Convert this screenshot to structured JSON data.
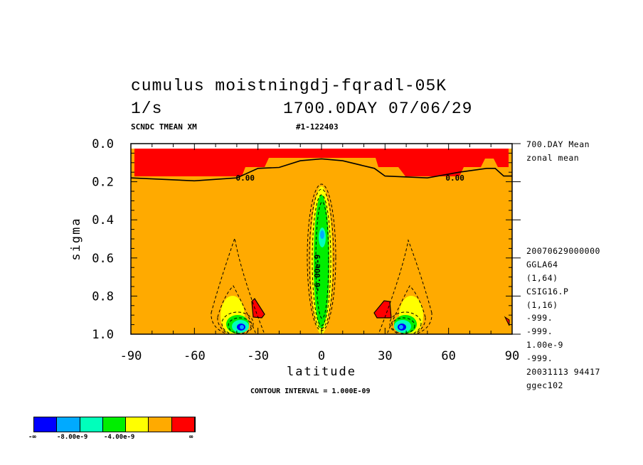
{
  "header": {
    "title_line1": "cumulus moistningdj-fqradl-05K",
    "units": "1/s",
    "time_label": "1700.0DAY 07/06/29",
    "subtitle_left": "SCNDC TMEAN XM",
    "subtitle_right": "#1-122403",
    "contour_interval": "CONTOUR INTERVAL = 1.000E-09"
  },
  "side_info": [
    "700.DAY Mean",
    "zonal mean",
    "20070629000000",
    "GGLA64",
    "(1,64)",
    "CSIG16.P",
    "(1,16)",
    "-999.",
    "-999.",
    "1.00e-9",
    "-999.",
    "20031113  94417",
    "ggec102"
  ],
  "legend": {
    "labels": [
      "-∞",
      "-8.00e-9",
      "-4.00e-9",
      "∞"
    ],
    "colors": [
      "#0000ff",
      "#00aaff",
      "#00ffbb",
      "#00ee00",
      "#ffff00",
      "#ffaa00",
      "#ff0000"
    ]
  },
  "chart_data": {
    "type": "heatmap",
    "subtype": "filled contour",
    "title": "cumulus moistningdj-fqradl-05K",
    "xlabel": "latitude",
    "ylabel": "sigma",
    "xlim": [
      -90,
      90
    ],
    "ylim": [
      1.0,
      0.0
    ],
    "x_ticks": [
      -90,
      -60,
      -30,
      0,
      30,
      60,
      90
    ],
    "x_tick_labels": [
      "-90",
      "-60",
      "-30",
      "0",
      "30",
      "60",
      "90"
    ],
    "y_ticks": [
      0.0,
      0.2,
      0.4,
      0.6,
      0.8,
      1.0
    ],
    "y_tick_labels": [
      "0.0",
      "0.2",
      "0.4",
      "0.6",
      "0.8",
      "1.0"
    ],
    "contour_interval": 1e-09,
    "contour_labels": [
      {
        "text": "0.00",
        "lat": -36,
        "sigma": 0.18
      },
      {
        "text": "0.00",
        "lat": 63,
        "sigma": 0.18
      },
      {
        "text": "-6.00e-9",
        "lat": -2,
        "sigma": 0.68
      }
    ],
    "zero_line": [
      [
        -90,
        0.18
      ],
      [
        -60,
        0.195
      ],
      [
        -40,
        0.18
      ],
      [
        -30,
        0.13
      ],
      [
        -20,
        0.125
      ],
      [
        -10,
        0.09
      ],
      [
        0,
        0.08
      ],
      [
        10,
        0.09
      ],
      [
        25,
        0.13
      ],
      [
        30,
        0.17
      ],
      [
        50,
        0.18
      ],
      [
        65,
        0.15
      ],
      [
        78,
        0.13
      ],
      [
        82,
        0.13
      ],
      [
        86,
        0.17
      ],
      [
        90,
        0.17
      ]
    ],
    "features": [
      {
        "name": "upper positive layer",
        "level": "> 0",
        "lat_range": [
          -88,
          88
        ],
        "sigma_range": [
          0.03,
          0.18
        ]
      },
      {
        "name": "equatorial negative column",
        "min_level": -6e-09,
        "lat_range": [
          -6,
          6
        ],
        "sigma_range": [
          0.22,
          0.98
        ]
      },
      {
        "name": "southern low-level negative",
        "min_level": -9e-09,
        "lat": -38,
        "sigma": 0.95
      },
      {
        "name": "northern low-level negative",
        "min_level": -9e-09,
        "lat": 38,
        "sigma": 0.95
      },
      {
        "name": "southern positive patch",
        "level": "> 0",
        "lat": -32,
        "sigma": 0.86
      },
      {
        "name": "northern positive patch",
        "level": "> 0",
        "lat": 30,
        "sigma": 0.86
      }
    ]
  }
}
